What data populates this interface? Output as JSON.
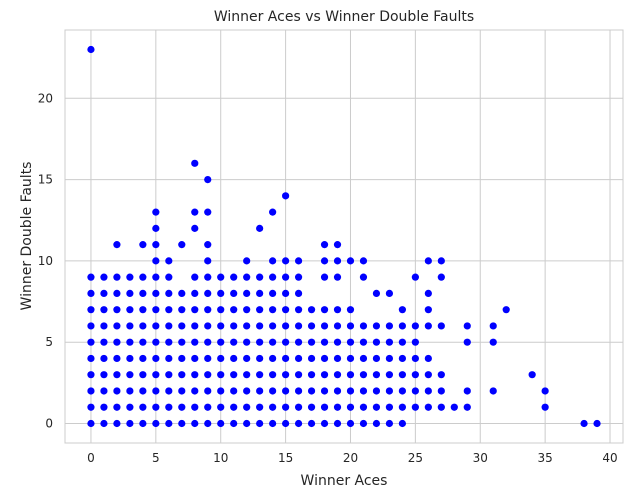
{
  "chart_data": {
    "type": "scatter",
    "title": "Winner Aces vs Winner Double Faults",
    "xlabel": "Winner Aces",
    "ylabel": "Winner Double Faults",
    "xlim": [
      -2,
      41
    ],
    "ylim": [
      -1.2,
      24.2
    ],
    "xticks": [
      0,
      5,
      10,
      15,
      20,
      25,
      30,
      35,
      40
    ],
    "yticks": [
      0,
      5,
      10,
      15,
      20
    ],
    "grid": true,
    "marker_color": "#0000ff",
    "columns": [
      {
        "x": 0,
        "y": [
          0,
          1,
          2,
          3,
          4,
          5,
          6,
          7,
          8,
          9,
          23
        ]
      },
      {
        "x": 1,
        "y": [
          0,
          1,
          2,
          3,
          4,
          5,
          6,
          7,
          8,
          9
        ]
      },
      {
        "x": 2,
        "y": [
          0,
          1,
          2,
          3,
          4,
          5,
          6,
          7,
          8,
          9,
          11
        ]
      },
      {
        "x": 3,
        "y": [
          0,
          1,
          2,
          3,
          4,
          5,
          6,
          7,
          8,
          9
        ]
      },
      {
        "x": 4,
        "y": [
          0,
          1,
          2,
          3,
          4,
          5,
          6,
          7,
          8,
          9,
          11
        ]
      },
      {
        "x": 5,
        "y": [
          0,
          1,
          2,
          3,
          4,
          5,
          6,
          7,
          8,
          9,
          10,
          11,
          12,
          13
        ]
      },
      {
        "x": 6,
        "y": [
          0,
          1,
          2,
          3,
          4,
          5,
          6,
          7,
          8,
          9,
          10
        ]
      },
      {
        "x": 7,
        "y": [
          0,
          1,
          2,
          3,
          4,
          5,
          6,
          7,
          8,
          11
        ]
      },
      {
        "x": 8,
        "y": [
          0,
          1,
          2,
          3,
          4,
          5,
          6,
          7,
          8,
          9,
          12,
          13,
          16
        ]
      },
      {
        "x": 9,
        "y": [
          0,
          1,
          2,
          3,
          4,
          5,
          6,
          7,
          8,
          9,
          10,
          11,
          13,
          15
        ]
      },
      {
        "x": 10,
        "y": [
          0,
          1,
          2,
          3,
          4,
          5,
          6,
          7,
          8,
          9
        ]
      },
      {
        "x": 11,
        "y": [
          0,
          1,
          2,
          3,
          4,
          5,
          6,
          7,
          8,
          9
        ]
      },
      {
        "x": 12,
        "y": [
          0,
          1,
          2,
          3,
          4,
          5,
          6,
          7,
          8,
          9,
          10
        ]
      },
      {
        "x": 13,
        "y": [
          0,
          1,
          2,
          3,
          4,
          5,
          6,
          7,
          8,
          9,
          12
        ]
      },
      {
        "x": 14,
        "y": [
          0,
          1,
          2,
          3,
          4,
          5,
          6,
          7,
          8,
          9,
          10,
          13
        ]
      },
      {
        "x": 15,
        "y": [
          0,
          1,
          2,
          3,
          4,
          5,
          6,
          7,
          8,
          9,
          10,
          14
        ]
      },
      {
        "x": 16,
        "y": [
          0,
          1,
          2,
          3,
          4,
          5,
          6,
          7,
          8,
          9,
          10
        ]
      },
      {
        "x": 17,
        "y": [
          0,
          1,
          2,
          3,
          4,
          5,
          6,
          7
        ]
      },
      {
        "x": 18,
        "y": [
          0,
          1,
          2,
          3,
          4,
          5,
          6,
          7,
          9,
          10,
          11
        ]
      },
      {
        "x": 19,
        "y": [
          0,
          1,
          2,
          3,
          4,
          5,
          6,
          7,
          9,
          10,
          11
        ]
      },
      {
        "x": 20,
        "y": [
          0,
          1,
          2,
          3,
          4,
          5,
          6,
          7,
          10
        ]
      },
      {
        "x": 21,
        "y": [
          0,
          1,
          2,
          3,
          4,
          5,
          6,
          9,
          10
        ]
      },
      {
        "x": 22,
        "y": [
          0,
          1,
          2,
          3,
          4,
          5,
          6,
          8
        ]
      },
      {
        "x": 23,
        "y": [
          0,
          1,
          2,
          3,
          4,
          5,
          6,
          8
        ]
      },
      {
        "x": 24,
        "y": [
          0,
          1,
          2,
          3,
          4,
          5,
          6,
          7
        ]
      },
      {
        "x": 25,
        "y": [
          1,
          2,
          3,
          4,
          5,
          6,
          9
        ]
      },
      {
        "x": 26,
        "y": [
          1,
          2,
          3,
          4,
          6,
          7,
          8,
          10
        ]
      },
      {
        "x": 27,
        "y": [
          1,
          2,
          3,
          6,
          9,
          10
        ]
      },
      {
        "x": 28,
        "y": [
          1
        ]
      },
      {
        "x": 29,
        "y": [
          1,
          2,
          5,
          6
        ]
      },
      {
        "x": 31,
        "y": [
          2,
          5,
          6
        ]
      },
      {
        "x": 32,
        "y": [
          7
        ]
      },
      {
        "x": 34,
        "y": [
          3
        ]
      },
      {
        "x": 35,
        "y": [
          1,
          2
        ]
      },
      {
        "x": 38,
        "y": [
          0
        ]
      },
      {
        "x": 39,
        "y": [
          0
        ]
      }
    ]
  }
}
